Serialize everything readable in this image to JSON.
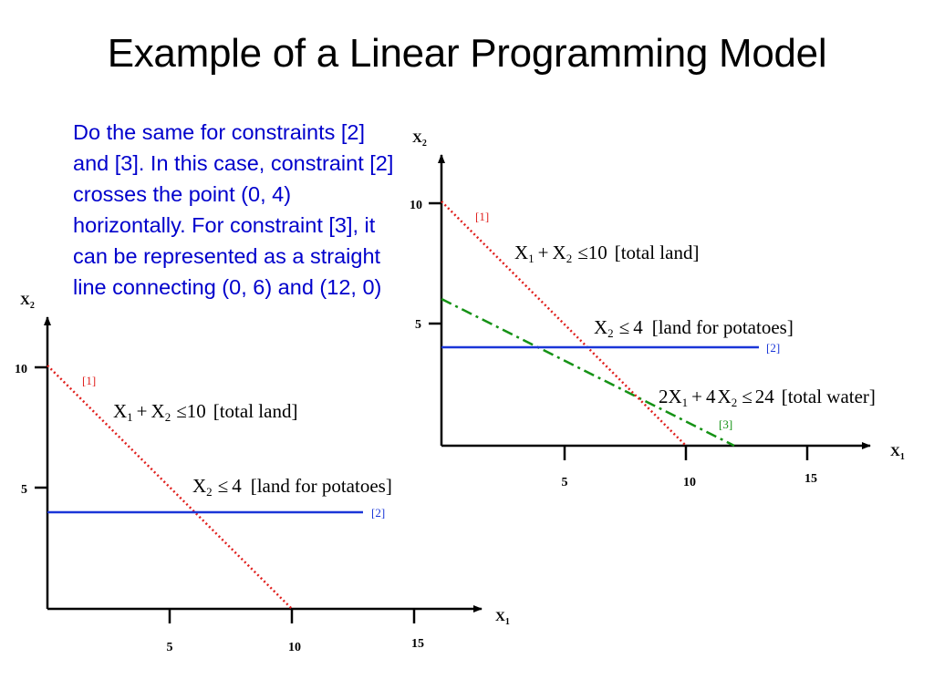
{
  "slide": {
    "title": "Example of a Linear Programming Model",
    "body_text": "Do the same for constraints [2] and [3]. In this case, constraint [2] crosses the point (0, 4) horizontally. For constraint [3], it can be represented as a straight line connecting (0, 6) and (12, 0)"
  },
  "colors": {
    "text_blue": "#0000cc",
    "constraint_1": "#e0201e",
    "constraint_2": "#1a36d8",
    "constraint_3": "#159215"
  },
  "graph_left": {
    "x_axis_label": "X",
    "x_axis_sub": "1",
    "y_axis_label": "X",
    "y_axis_sub": "2",
    "x_ticks": [
      "5",
      "10",
      "15"
    ],
    "y_ticks": [
      "5",
      "10"
    ],
    "tag_1": "[1]",
    "tag_2": "[2]",
    "eq_1": {
      "a": "X",
      "a_sub": "1",
      "op": "+",
      "b": "X",
      "b_sub": "2",
      "rel": "≤",
      "rhs": "10",
      "note": "[total land]"
    },
    "eq_2": {
      "a": "X",
      "a_sub": "2",
      "rel": "≤",
      "rhs": "4",
      "note": "[land for potatoes]"
    }
  },
  "graph_right": {
    "x_axis_label": "X",
    "x_axis_sub": "1",
    "y_axis_label": "X",
    "y_axis_sub": "2",
    "x_ticks": [
      "5",
      "10",
      "15"
    ],
    "y_ticks": [
      "5",
      "10"
    ],
    "tag_1": "[1]",
    "tag_2": "[2]",
    "tag_3": "[3]",
    "eq_1": {
      "a": "X",
      "a_sub": "1",
      "op": "+",
      "b": "X",
      "b_sub": "2",
      "rel": "≤",
      "rhs": "10",
      "note": "[total land]"
    },
    "eq_2": {
      "a": "X",
      "a_sub": "2",
      "rel": "≤",
      "rhs": "4",
      "note": "[land for potatoes]"
    },
    "eq_3": {
      "c1": "2",
      "a": "X",
      "a_sub": "1",
      "op": "+",
      "c2": "4",
      "b": "X",
      "b_sub": "2",
      "rel": "≤",
      "rhs": "24",
      "note": "[total water]"
    }
  }
}
